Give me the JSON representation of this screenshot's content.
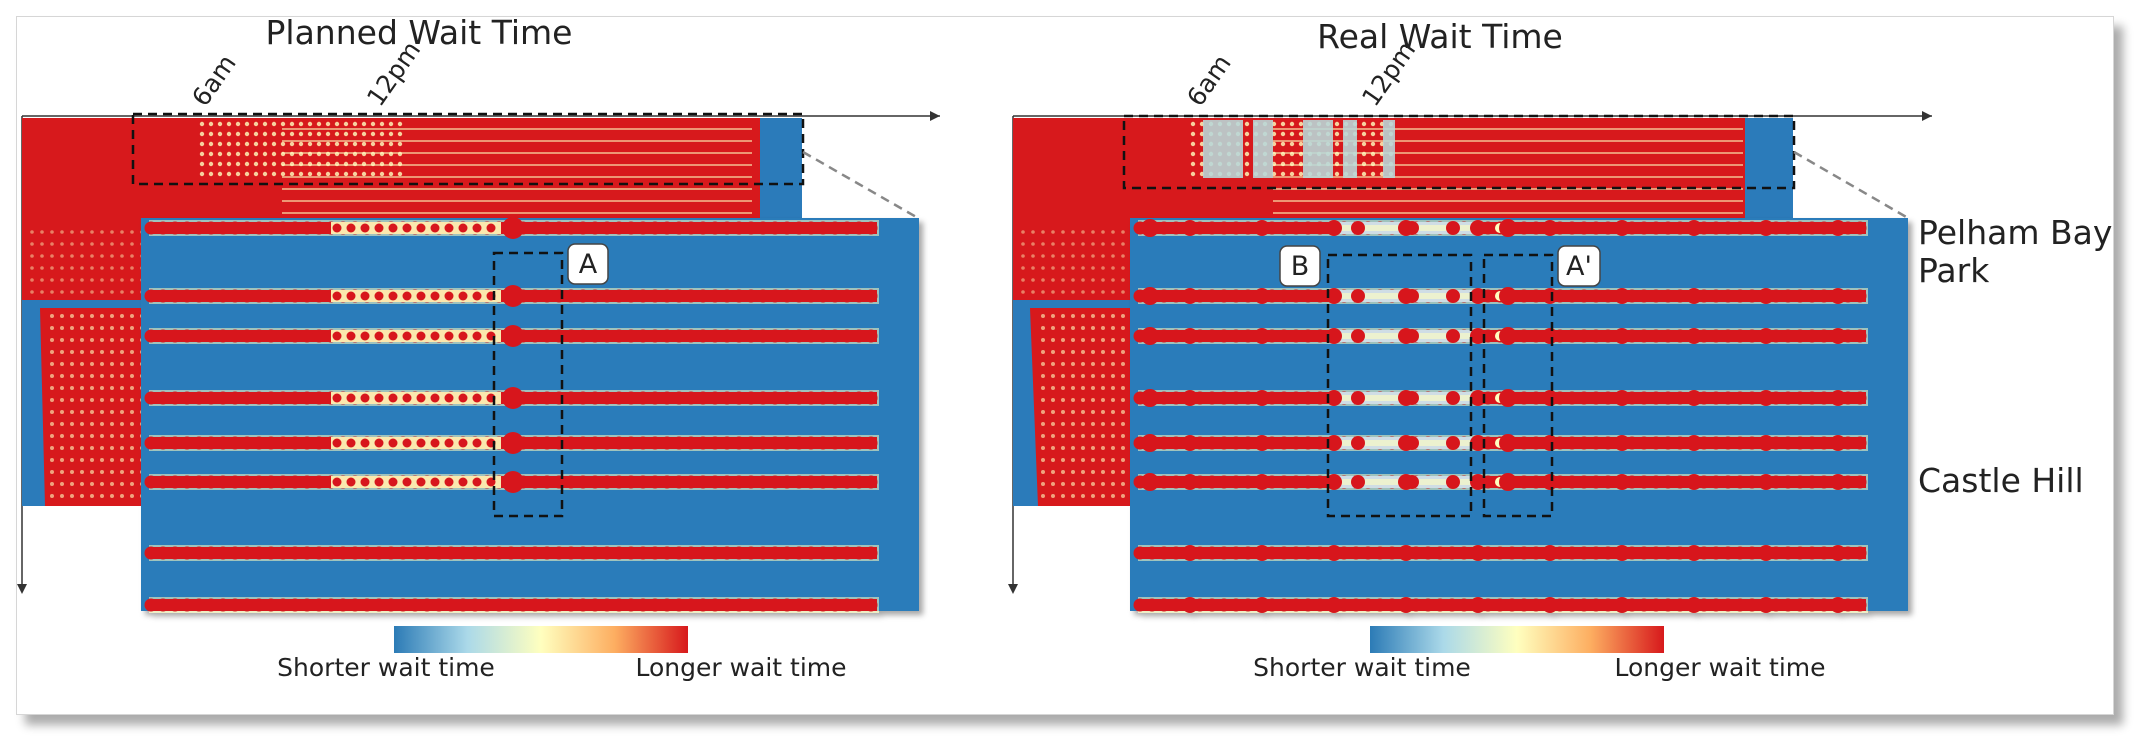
{
  "panels": [
    {
      "id": "planned",
      "title": "Planned Wait Time",
      "ticks": [
        "6am",
        "12pm"
      ],
      "boxes": [
        "A"
      ],
      "colorbar": {
        "low_label": "Shorter wait time",
        "high_label": "Longer wait time"
      }
    },
    {
      "id": "real",
      "title": "Real Wait Time",
      "ticks": [
        "6am",
        "12pm"
      ],
      "boxes": [
        "B",
        "A'"
      ],
      "stations": [
        "Pelham Bay Park",
        "Castle Hill"
      ],
      "colorbar": {
        "low_label": "Shorter wait time",
        "high_label": "Longer wait time"
      }
    }
  ],
  "colors": {
    "background_blue": "#2b7bba",
    "long_wait_red": "#d7191c",
    "mid_yellow": "#ffffbf",
    "short_wait_blue": "#2c7bb6"
  }
}
